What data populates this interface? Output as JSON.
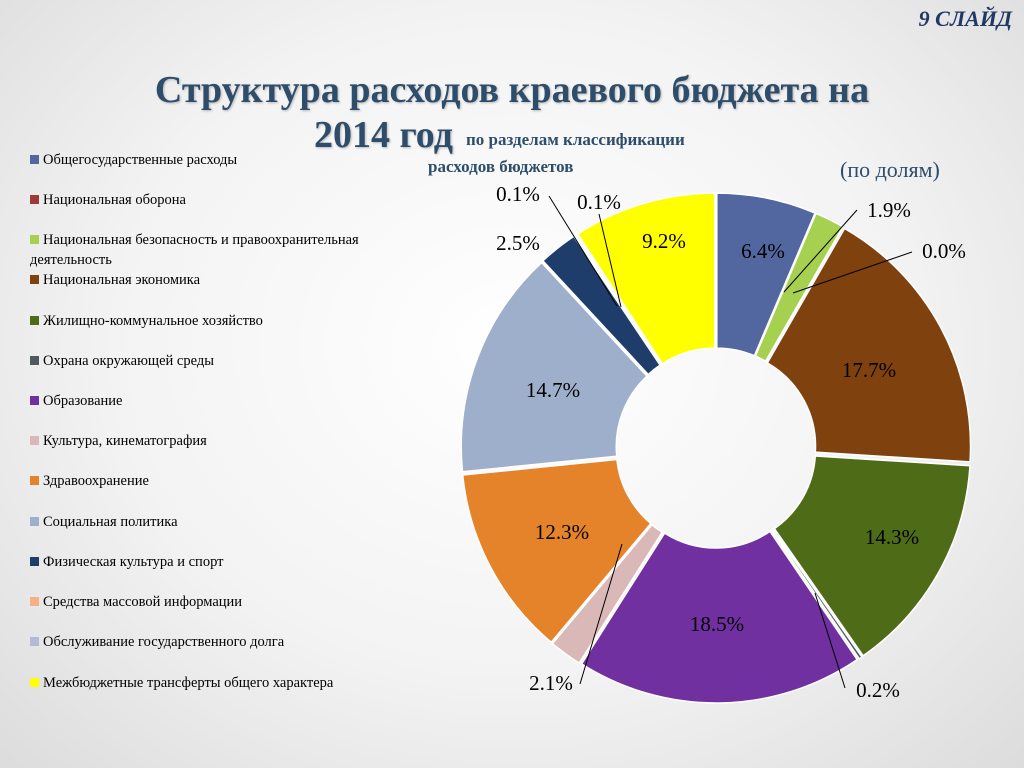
{
  "slide": {
    "number_label": "9 СЛАЙД"
  },
  "title": {
    "line1": "Структура расходов краевого бюджета на",
    "line2": "2014 год",
    "subtitle_line1": "по разделам классификации",
    "subtitle_line2": "расходов бюджетов",
    "note": "(по долям)"
  },
  "chart_data": {
    "type": "pie",
    "title": "Структура расходов краевого бюджета на 2014 год по разделам классификации расходов бюджетов",
    "unit": "%",
    "legend_position": "left",
    "start_angle_deg": 0,
    "direction": "clockwise",
    "categories": [
      "Общегосударственные расходы",
      "Национальная оборона",
      "Национальная безопасность и правоохранительная деятельность",
      "Национальная экономика",
      "Жилищно-коммунальное хозяйство",
      "Охрана окружающей среды",
      "Образование",
      "Культура, кинематография",
      "Здравоохранение",
      "Социальная политика",
      "Физическая культура и спорт",
      "Средства массовой информации",
      "Обслуживание государственного долга",
      "Межбюджетные трансферты общего характера"
    ],
    "values": [
      6.4,
      0.0,
      1.9,
      17.7,
      14.3,
      0.2,
      18.5,
      2.1,
      12.3,
      14.7,
      2.5,
      0.1,
      0.1,
      9.2
    ],
    "labels": [
      "6.4%",
      "0.0%",
      "1.9%",
      "17.7%",
      "14.3%",
      "0.2%",
      "18.5%",
      "2.1%",
      "12.3%",
      "14.7%",
      "2.5%",
      "0.1%",
      "0.1%",
      "9.2%"
    ],
    "colors": [
      "#5266a0",
      "#9b3c38",
      "#a6d04f",
      "#7f420f",
      "#4e6b17",
      "#4f5a5c",
      "#7030a0",
      "#dbb8b8",
      "#e5832a",
      "#9eafcc",
      "#1f3d6b",
      "#f4b183",
      "#b4b9d8",
      "#ffff00"
    ]
  }
}
